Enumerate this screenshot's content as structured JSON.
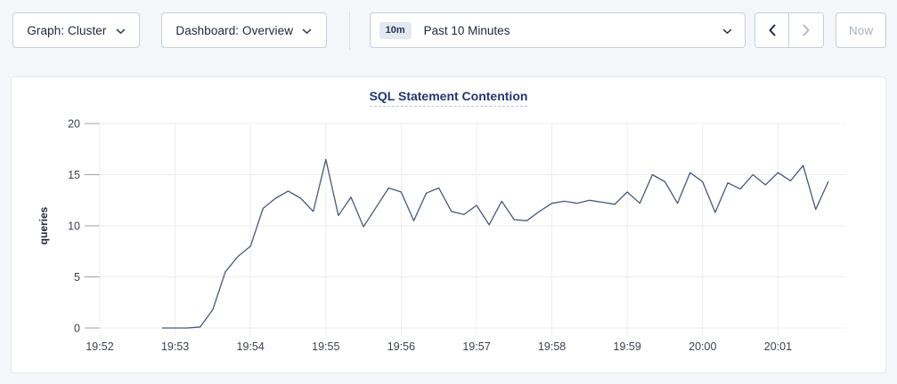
{
  "toolbar": {
    "graph_dropdown": {
      "label": "Graph: Cluster"
    },
    "dashboard_dropdown": {
      "label": "Dashboard: Overview"
    },
    "time_selector": {
      "badge": "10m",
      "label": "Past 10 Minutes"
    },
    "now_button": "Now",
    "icons": {
      "graph_dropdown": "chevron-down",
      "dashboard_dropdown": "chevron-down",
      "time_selector": "chevron-down",
      "prev": "chevron-left",
      "next": "chevron-right"
    },
    "prev_enabled": true,
    "next_enabled": false,
    "now_enabled": false
  },
  "chart_data": {
    "type": "line",
    "title": "SQL Statement Contention",
    "ylabel": "queries",
    "xlabel": "",
    "grid": true,
    "legend": "none",
    "ylim": [
      0,
      20
    ],
    "y_ticks": [
      0,
      5,
      10,
      15,
      20
    ],
    "x_tick_labels": [
      "19:52",
      "19:53",
      "19:54",
      "19:55",
      "19:56",
      "19:57",
      "19:58",
      "19:59",
      "20:00",
      "20:01"
    ],
    "line_color": "#4a5878",
    "grid_color": "#ededf0",
    "tick_color": "#9aa0ab",
    "series": [
      {
        "name": "SQL Statement Contention",
        "unit": "queries",
        "start_time": "19:52:50",
        "interval_seconds": 10,
        "values": [
          0,
          0,
          0,
          0.1,
          1.8,
          5.5,
          7.0,
          8.0,
          11.7,
          12.7,
          13.4,
          12.7,
          11.4,
          16.5,
          11.0,
          12.8,
          9.9,
          11.8,
          13.7,
          13.3,
          10.5,
          13.2,
          13.7,
          11.4,
          11.1,
          12.0,
          10.1,
          12.4,
          10.6,
          10.5,
          11.4,
          12.2,
          12.4,
          12.2,
          12.5,
          12.3,
          12.1,
          13.3,
          12.2,
          15.0,
          14.3,
          12.2,
          15.2,
          14.3,
          11.3,
          14.2,
          13.6,
          15.0,
          14.0,
          15.2,
          14.4,
          15.9,
          11.6,
          14.3
        ]
      }
    ]
  }
}
